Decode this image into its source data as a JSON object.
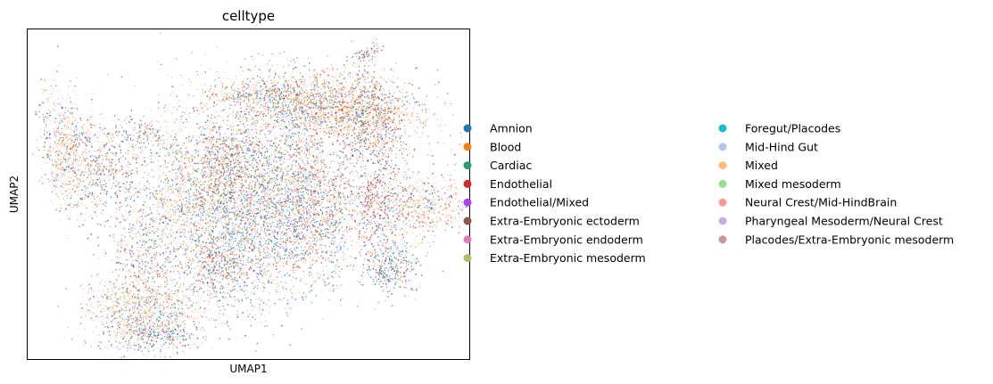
{
  "chart_data": {
    "type": "scatter",
    "title": "celltype",
    "xlabel": "UMAP1",
    "ylabel": "UMAP2",
    "grid": false,
    "xticks": [],
    "yticks": [],
    "legend_position": "right, two columns",
    "categories": [
      {
        "name": "Amnion",
        "color": "#1f77b4"
      },
      {
        "name": "Blood",
        "color": "#ff7f0e"
      },
      {
        "name": "Cardiac",
        "color": "#279e68"
      },
      {
        "name": "Endothelial",
        "color": "#d62728"
      },
      {
        "name": "Endothelial/Mixed",
        "color": "#aa40fc"
      },
      {
        "name": "Extra-Embryonic ectoderm",
        "color": "#8c564b"
      },
      {
        "name": "Extra-Embryonic endoderm",
        "color": "#e377c2"
      },
      {
        "name": "Extra-Embryonic mesoderm",
        "color": "#b5bd61"
      },
      {
        "name": "Foregut/Placodes",
        "color": "#17becf"
      },
      {
        "name": "Mid-Hind Gut",
        "color": "#aec7e8"
      },
      {
        "name": "Mixed",
        "color": "#ffbb78"
      },
      {
        "name": "Mixed mesoderm",
        "color": "#98df8a"
      },
      {
        "name": "Neural Crest/Mid-HindBrain",
        "color": "#ff9896"
      },
      {
        "name": "Pharyngeal Mesoderm/Neural Crest",
        "color": "#c5b0d5"
      },
      {
        "name": "Placodes/Extra-Embryonic mesoderm",
        "color": "#c49c94"
      }
    ],
    "point_mix_weights": [
      30,
      8,
      3,
      9,
      2,
      12,
      5,
      2,
      4,
      5,
      22,
      2,
      3,
      6,
      7
    ]
  }
}
